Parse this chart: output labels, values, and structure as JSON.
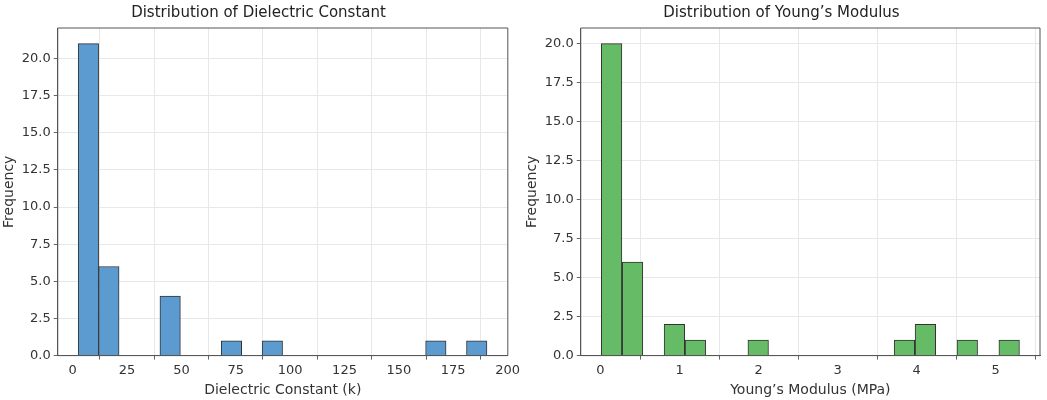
{
  "chart_data": [
    {
      "type": "histogram",
      "title": "Distribution of Dielectric Constant",
      "xlabel": "Dielectric Constant (k)",
      "ylabel": "Frequency",
      "color": "#5b9bcf",
      "bins": [
        2.5,
        11.9,
        21.3,
        30.7,
        40.1,
        49.5,
        58.9,
        68.3,
        77.7,
        87.1,
        96.5,
        105.9,
        115.3,
        124.7,
        134.1,
        143.5,
        152.9,
        162.3,
        171.7,
        181.1,
        190.5
      ],
      "values": [
        21,
        6,
        0,
        0,
        4,
        0,
        0,
        1,
        0,
        1,
        0,
        0,
        0,
        0,
        0,
        0,
        0,
        1,
        0,
        1
      ],
      "xlim": [
        -6.9,
        200.1
      ],
      "xticks": [
        0,
        25,
        50,
        75,
        100,
        125,
        150,
        175,
        200
      ],
      "ylim": [
        0,
        22.05
      ],
      "yticks": [
        {
          "value": 0,
          "label": "0.0"
        },
        {
          "value": 2.5,
          "label": "2.5"
        },
        {
          "value": 5,
          "label": "5.0"
        },
        {
          "value": 7.5,
          "label": "7.5"
        },
        {
          "value": 10,
          "label": "10.0"
        },
        {
          "value": 12.5,
          "label": "12.5"
        },
        {
          "value": 15,
          "label": "15.0"
        },
        {
          "value": 17.5,
          "label": "17.5"
        },
        {
          "value": 20,
          "label": "20.0"
        }
      ],
      "grid": true
    },
    {
      "type": "histogram",
      "title": "Distribution of Young’s Modulus",
      "xlabel": "Young’s Modulus (MPa)",
      "ylabel": "Frequency",
      "color": "#66bb66",
      "bins": [
        0.01,
        0.27,
        0.54,
        0.8,
        1.07,
        1.33,
        1.6,
        1.86,
        2.13,
        2.39,
        2.66,
        2.92,
        3.18,
        3.45,
        3.71,
        3.98,
        4.24,
        4.51,
        4.77,
        5.04,
        5.3
      ],
      "values": [
        20,
        6,
        0,
        2,
        1,
        0,
        0,
        1,
        0,
        0,
        0,
        0,
        0,
        0,
        1,
        2,
        0,
        1,
        0,
        1
      ],
      "xlim": [
        -0.25,
        5.56
      ],
      "xticks": [
        0,
        1,
        2,
        3,
        4,
        5
      ],
      "ylim": [
        0,
        21
      ],
      "yticks": [
        {
          "value": 0,
          "label": "0.0"
        },
        {
          "value": 2.5,
          "label": "2.5"
        },
        {
          "value": 5,
          "label": "5.0"
        },
        {
          "value": 7.5,
          "label": "7.5"
        },
        {
          "value": 10,
          "label": "10.0"
        },
        {
          "value": 12.5,
          "label": "12.5"
        },
        {
          "value": 15,
          "label": "15.0"
        },
        {
          "value": 17.5,
          "label": "17.5"
        },
        {
          "value": 20,
          "label": "20.0"
        }
      ],
      "grid": true
    }
  ]
}
